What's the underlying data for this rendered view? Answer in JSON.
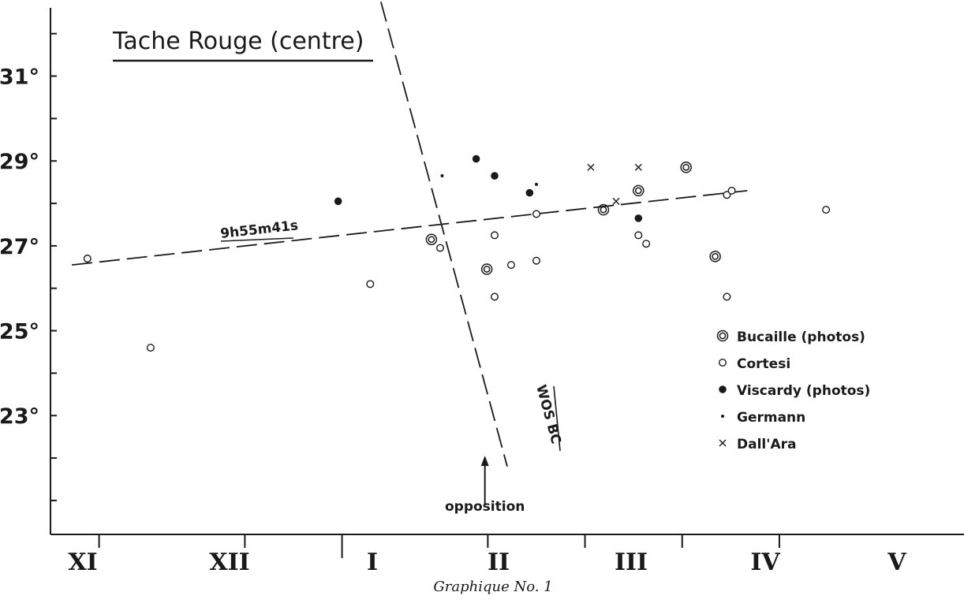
{
  "caption": "Graphique No. 1",
  "chart_data": {
    "type": "scatter",
    "title": "Tache Rouge (centre)",
    "xlabel": "",
    "ylabel": "",
    "ylim": [
      20.2,
      32.7
    ],
    "xlim": [
      -1.0,
      8.4
    ],
    "y_ticks": [
      {
        "value": 31,
        "label": "31°"
      },
      {
        "value": 29,
        "label": "29°"
      },
      {
        "value": 27,
        "label": "27°"
      },
      {
        "value": 25,
        "label": "25°"
      },
      {
        "value": 23,
        "label": "23°"
      }
    ],
    "months": [
      "XI",
      "XII",
      "I",
      "II",
      "III",
      "IV",
      "V"
    ],
    "legend_position": "right",
    "series": [
      {
        "name": "Bucaille (photos)",
        "marker": "double-circle",
        "points": [
          [
            2.92,
            27.15
          ],
          [
            3.49,
            26.45
          ],
          [
            4.69,
            27.85
          ],
          [
            5.05,
            28.3
          ],
          [
            5.54,
            28.85
          ],
          [
            5.84,
            26.75
          ]
        ]
      },
      {
        "name": "Cortesi",
        "marker": "circle",
        "points": [
          [
            -0.62,
            26.7
          ],
          [
            0.03,
            24.6
          ],
          [
            2.29,
            26.1
          ],
          [
            3.01,
            26.95
          ],
          [
            3.57,
            27.25
          ],
          [
            3.57,
            25.8
          ],
          [
            3.74,
            26.55
          ],
          [
            4.0,
            27.75
          ],
          [
            4.0,
            26.65
          ],
          [
            5.05,
            27.25
          ],
          [
            5.13,
            27.05
          ],
          [
            5.96,
            28.2
          ],
          [
            6.01,
            28.3
          ],
          [
            5.96,
            25.8
          ],
          [
            6.98,
            27.85
          ]
        ]
      },
      {
        "name": "Viscardy (photos)",
        "marker": "filled-circle",
        "points": [
          [
            1.96,
            28.05
          ],
          [
            3.38,
            29.05
          ],
          [
            3.57,
            28.65
          ],
          [
            3.93,
            28.25
          ],
          [
            5.05,
            27.65
          ]
        ]
      },
      {
        "name": "Germann",
        "marker": "small-dot",
        "points": [
          [
            3.03,
            28.65
          ],
          [
            4.0,
            28.45
          ]
        ]
      },
      {
        "name": "Dall'Ara",
        "marker": "x",
        "points": [
          [
            4.56,
            28.85
          ],
          [
            4.82,
            28.05
          ],
          [
            5.05,
            28.85
          ]
        ]
      }
    ],
    "trend_lines": [
      {
        "label": "9h55m41s",
        "points": [
          [
            -0.78,
            26.55
          ],
          [
            6.17,
            28.3
          ]
        ]
      },
      {
        "label": "WOS BC",
        "points": [
          [
            2.4,
            32.75
          ],
          [
            3.7,
            21.8
          ]
        ]
      }
    ],
    "annotations": [
      {
        "text": "opposition",
        "arrow_x": 3.47,
        "arrow_from_y": 20.9,
        "arrow_to_y": 22.0
      }
    ]
  }
}
